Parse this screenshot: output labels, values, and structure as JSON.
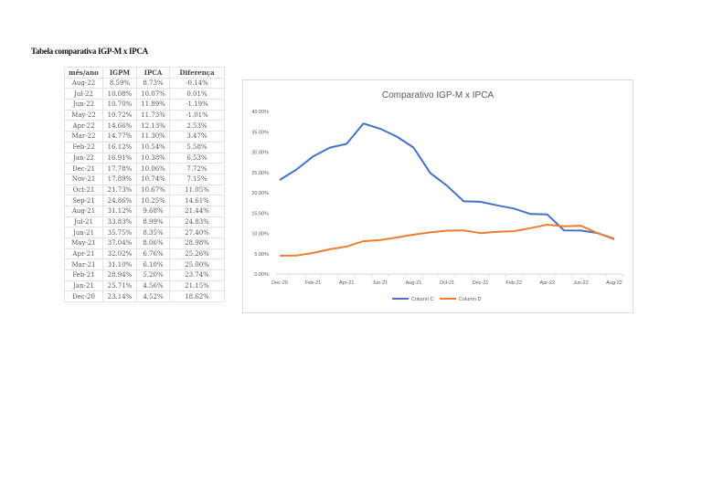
{
  "page_title": "Tabela comparativa IGP-M x IPCA",
  "table": {
    "headers": [
      "mês/ano",
      "IGPM",
      "IPCA",
      "Diferença"
    ],
    "rows": [
      [
        "Aug-22",
        "8.59%",
        "8.73%",
        "-0.14%"
      ],
      [
        "Jul-22",
        "10.08%",
        "10.07%",
        "0.01%"
      ],
      [
        "Jun-22",
        "10.70%",
        "11.89%",
        "-1.19%"
      ],
      [
        "May-22",
        "10.72%",
        "11.73%",
        "-1.01%"
      ],
      [
        "Apr-22",
        "14.66%",
        "12.13%",
        "2.53%"
      ],
      [
        "Mar-22",
        "14.77%",
        "11.30%",
        "3.47%"
      ],
      [
        "Feb-22",
        "16.12%",
        "10.54%",
        "5.58%"
      ],
      [
        "Jan-22",
        "16.91%",
        "10.38%",
        "6.53%"
      ],
      [
        "Dec-21",
        "17.78%",
        "10.06%",
        "7.72%"
      ],
      [
        "Nov-21",
        "17.89%",
        "10.74%",
        "7.15%"
      ],
      [
        "Oct-21",
        "21.73%",
        "10.67%",
        "11.05%"
      ],
      [
        "Sep-21",
        "24.86%",
        "10.25%",
        "14.61%"
      ],
      [
        "Aug-21",
        "31.12%",
        "9.68%",
        "21.44%"
      ],
      [
        "Jul-21",
        "33.83%",
        "8.99%",
        "24.83%"
      ],
      [
        "Jun-21",
        "35.75%",
        "8.35%",
        "27.40%"
      ],
      [
        "May-21",
        "37.04%",
        "8.06%",
        "28.98%"
      ],
      [
        "Apr-21",
        "32.02%",
        "6.76%",
        "25.26%"
      ],
      [
        "Mar-21",
        "31.10%",
        "6.10%",
        "25.00%"
      ],
      [
        "Feb-21",
        "28.94%",
        "5.20%",
        "23.74%"
      ],
      [
        "Jan-21",
        "25.71%",
        "4.56%",
        "21.15%"
      ],
      [
        "Dec-20",
        "23.14%",
        "4.52%",
        "18.62%"
      ]
    ]
  },
  "chart_data": {
    "type": "line",
    "title": "Comparativo IGP-M x IPCA",
    "x": [
      "Dec-20",
      "Jan-21",
      "Feb-21",
      "Mar-21",
      "Apr-21",
      "May-21",
      "Jun-21",
      "Jul-21",
      "Aug-21",
      "Sep-21",
      "Oct-21",
      "Nov-21",
      "Dec-21",
      "Jan-22",
      "Feb-22",
      "Mar-22",
      "Apr-22",
      "May-22",
      "Jun-22",
      "Jul-22",
      "Aug-22"
    ],
    "x_tick_labels": [
      "Dec-20",
      "Feb-21",
      "Apr-21",
      "Jun-21",
      "Aug-21",
      "Oct-21",
      "Dec-21",
      "Feb-22",
      "Apr-22",
      "Jun-22",
      "Aug-22"
    ],
    "y_tick_labels": [
      "0.00%",
      "5.00%",
      "10.00%",
      "15.00%",
      "20.00%",
      "25.00%",
      "30.00%",
      "35.00%",
      "40.00%"
    ],
    "ylim": [
      0,
      40
    ],
    "grid": false,
    "legend": "bottom",
    "series": [
      {
        "name": "Column C",
        "color": "#4472c4",
        "values": [
          23.14,
          25.71,
          28.94,
          31.1,
          32.02,
          37.04,
          35.75,
          33.83,
          31.12,
          24.86,
          21.73,
          17.89,
          17.78,
          16.91,
          16.12,
          14.77,
          14.66,
          10.72,
          10.7,
          10.08,
          8.59
        ]
      },
      {
        "name": "Column D",
        "color": "#ed7d31",
        "values": [
          4.52,
          4.56,
          5.2,
          6.1,
          6.76,
          8.06,
          8.35,
          8.99,
          9.68,
          10.25,
          10.67,
          10.74,
          10.06,
          10.38,
          10.54,
          11.3,
          12.13,
          11.73,
          11.89,
          10.07,
          8.73
        ]
      }
    ]
  }
}
